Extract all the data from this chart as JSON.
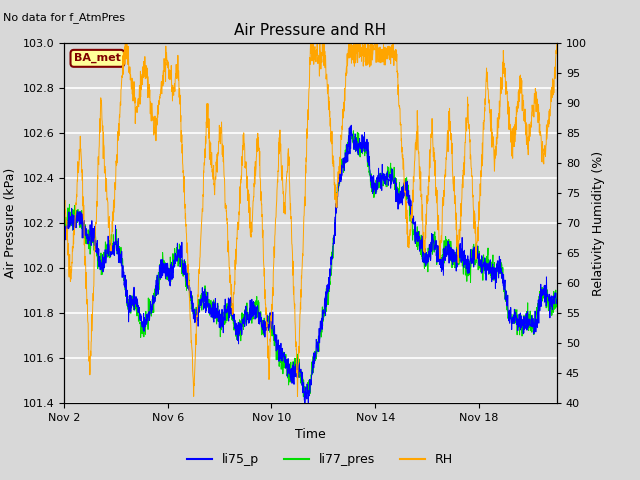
{
  "title": "Air Pressure and RH",
  "top_left_text": "No data for f_AtmPres",
  "xlabel": "Time",
  "ylabel_left": "Air Pressure (kPa)",
  "ylabel_right": "Relativity Humidity (%)",
  "ylim_left": [
    101.4,
    103.0
  ],
  "ylim_right": [
    40,
    100
  ],
  "yticks_left": [
    101.4,
    101.6,
    101.8,
    102.0,
    102.2,
    102.4,
    102.6,
    102.8,
    103.0
  ],
  "yticks_right": [
    40,
    45,
    50,
    55,
    60,
    65,
    70,
    75,
    80,
    85,
    90,
    95,
    100
  ],
  "xtick_positions": [
    0,
    4,
    8,
    12,
    16
  ],
  "xtick_labels": [
    "Nov 2",
    "Nov 6",
    "Nov 10",
    "Nov 14",
    "Nov 18"
  ],
  "xlim": [
    0,
    19
  ],
  "bg_color": "#d8d8d8",
  "plot_bg_color": "#d8d8d8",
  "grid_color": "#ffffff",
  "line_blue": "#0000ff",
  "line_green": "#00dd00",
  "line_orange": "#ffa500",
  "legend_labels": [
    "li75_p",
    "li77_pres",
    "RH"
  ],
  "box_label": "BA_met",
  "box_facecolor": "#ffff99",
  "box_edgecolor": "#800000",
  "title_fontsize": 11,
  "label_fontsize": 9,
  "tick_fontsize": 8
}
